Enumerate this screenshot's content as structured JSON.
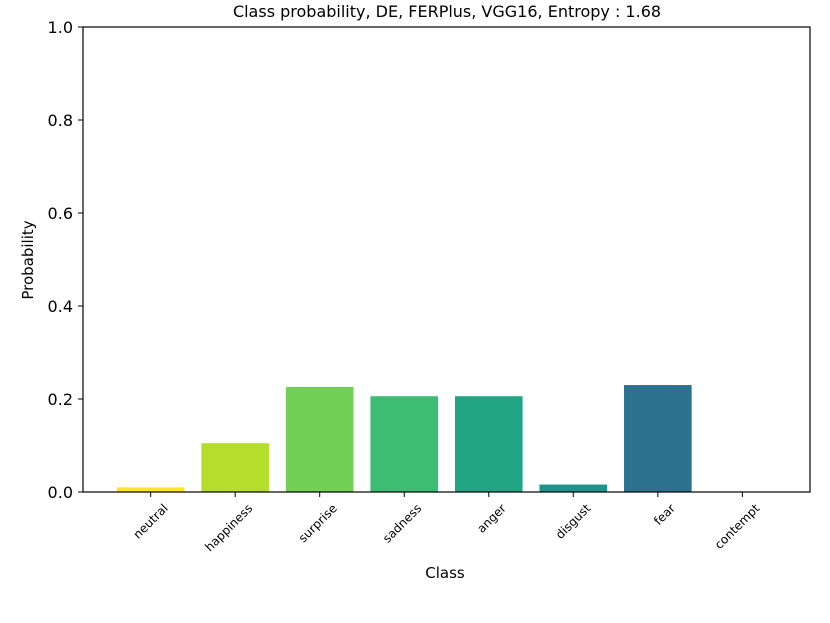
{
  "chart_data": {
    "type": "bar",
    "title": "Class probability, DE, FERPlus, VGG16, Entropy : 1.68",
    "xlabel": "Class",
    "ylabel": "Probability",
    "ylim": [
      0,
      1.0
    ],
    "yticks": [
      "0.0",
      "0.2",
      "0.4",
      "0.6",
      "0.8",
      "1.0"
    ],
    "grid": false,
    "categories": [
      "neutral",
      "happiness",
      "surprise",
      "sadness",
      "anger",
      "disgust",
      "fear",
      "contempt"
    ],
    "values": [
      0.01,
      0.105,
      0.226,
      0.206,
      0.206,
      0.016,
      0.23,
      0.0
    ],
    "colors": [
      "#fde725",
      "#b5de2b",
      "#74d055",
      "#3dbc74",
      "#21a585",
      "#20928c",
      "#2c728e",
      "#472d7b"
    ]
  }
}
